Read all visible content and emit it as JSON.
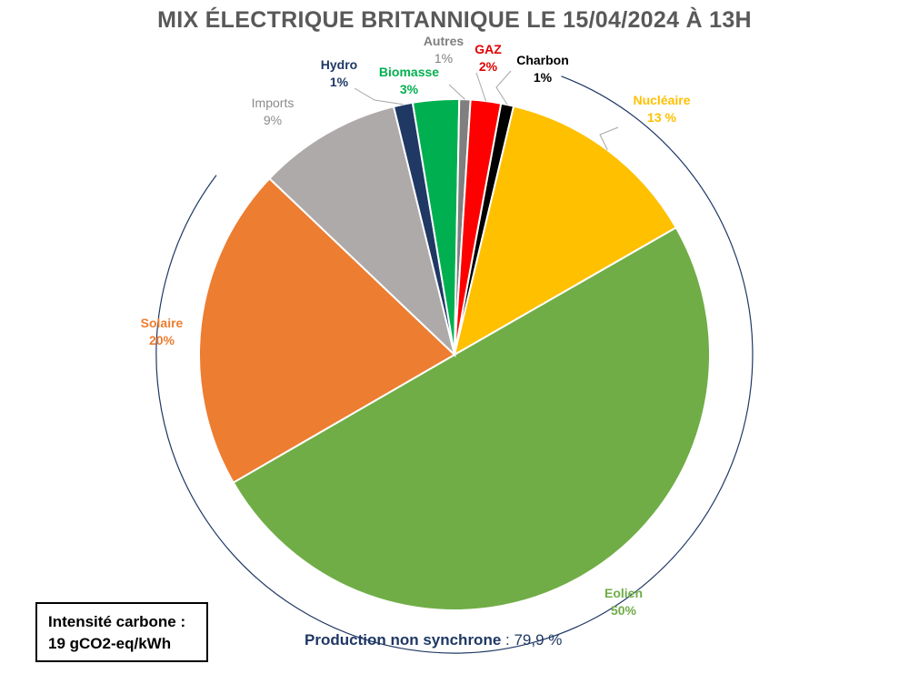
{
  "chart_data": {
    "type": "pie",
    "title": "MIX ÉLECTRIQUE BRITANNIQUE LE 15/04/2024 À 13H",
    "slices": [
      {
        "name": "Charbon",
        "value_text": "1%",
        "value": 0.8,
        "color": "#000000",
        "label_color": "#000000"
      },
      {
        "name": "Nucléaire",
        "value_text": "13  %",
        "value": 12.9,
        "color": "#ffc000",
        "label_color": "#ffc000"
      },
      {
        "name": "Eolien",
        "value_text": "50%",
        "value": 49.6,
        "color": "#70ad47",
        "label_color": "#70ad47"
      },
      {
        "name": "Solaire",
        "value_text": "20%",
        "value": 20.3,
        "color": "#ed7d31",
        "label_color": "#ed7d31"
      },
      {
        "name": "Imports",
        "value_text": "9%",
        "value": 9.0,
        "color": "#aeaaaa",
        "label_color": "#8c8c8c"
      },
      {
        "name": "Hydro",
        "value_text": "1%",
        "value": 1.2,
        "color": "#1f3864",
        "label_color": "#1f3864"
      },
      {
        "name": "Biomasse",
        "value_text": "3%",
        "value": 2.9,
        "color": "#00b050",
        "label_color": "#00b050"
      },
      {
        "name": "Autres",
        "value_text": "1%",
        "value": 0.7,
        "color": "#7f7f7f",
        "label_color": "#7f7f7f"
      },
      {
        "name": "GAZ",
        "value_text": "2%",
        "value": 1.9,
        "color": "#ff0000",
        "label_color": "#e00000"
      }
    ]
  },
  "annotations": {
    "carbon_line1": "Intensité carbone :",
    "carbon_line2": "19 gCO2-eq/kWh",
    "nonsync_label": "Production non synchrone",
    "nonsync_value": " : 79,9 %"
  }
}
